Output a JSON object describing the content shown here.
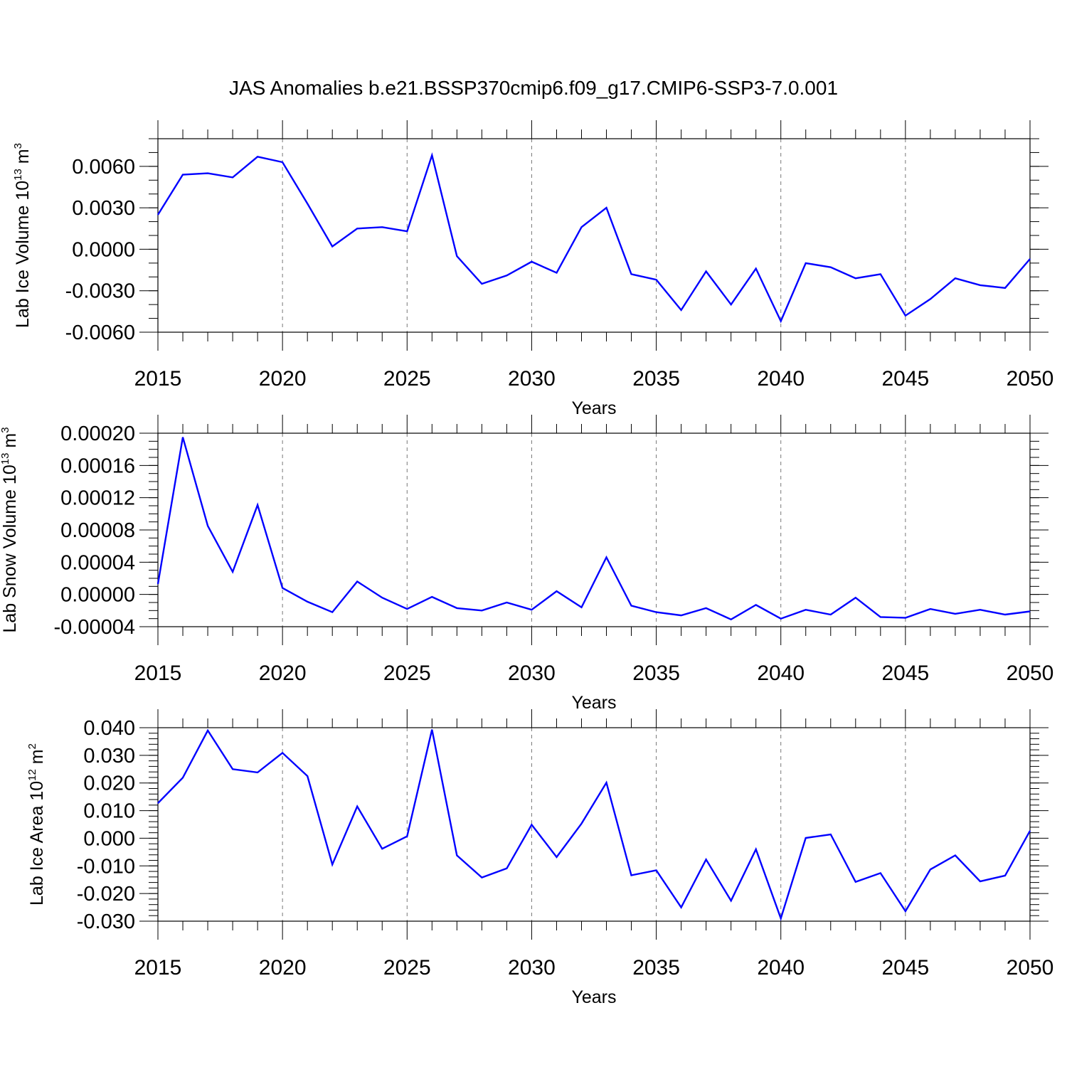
{
  "title": "JAS Anomalies b.e21.BSSP370cmip6.f09_g17.CMIP6-SSP3-7.0.001",
  "colors": {
    "series": "#0000ff",
    "grid": "#777777",
    "axis": "#000000"
  },
  "chart_data": [
    {
      "type": "line",
      "ylabel": {
        "main": "Lab Ice Volume 10",
        "sup": "13",
        "unit": " m",
        "unit_sup": "3"
      },
      "xlabel": "Years",
      "xlim": [
        2015,
        2050
      ],
      "ylim": [
        -0.006,
        0.008
      ],
      "yticks": [
        -0.006,
        -0.003,
        0.0,
        0.003,
        0.006
      ],
      "ytick_labels": [
        "-0.0060",
        "-0.0030",
        "0.0000",
        "0.0030",
        "0.0060"
      ],
      "yminor_step": 0.001,
      "xticks": [
        2015,
        2020,
        2025,
        2030,
        2035,
        2040,
        2045,
        2050
      ],
      "xtick_labels": [
        "2015",
        "2020",
        "2025",
        "2030",
        "2035",
        "2040",
        "2045",
        "2050"
      ],
      "grid": "vertical dashed at major x ticks",
      "x": [
        2015,
        2016,
        2017,
        2018,
        2019,
        2020,
        2021,
        2022,
        2023,
        2024,
        2025,
        2026,
        2027,
        2028,
        2029,
        2030,
        2031,
        2032,
        2033,
        2034,
        2035,
        2036,
        2037,
        2038,
        2039,
        2040,
        2041,
        2042,
        2043,
        2044,
        2045,
        2046,
        2047,
        2048,
        2049,
        2050
      ],
      "values": [
        0.0025,
        0.0054,
        0.0055,
        0.0052,
        0.0067,
        0.0063,
        0.0033,
        0.0002,
        0.0015,
        0.0016,
        0.0013,
        0.0068,
        -0.0005,
        -0.0025,
        -0.0019,
        -0.0009,
        -0.0017,
        0.0016,
        0.003,
        -0.0018,
        -0.0022,
        -0.0044,
        -0.0016,
        -0.004,
        -0.0014,
        -0.0052,
        -0.001,
        -0.0013,
        -0.0021,
        -0.0018,
        -0.0048,
        -0.0036,
        -0.0021,
        -0.0026,
        -0.0028,
        -0.0007
      ]
    },
    {
      "type": "line",
      "ylabel": {
        "main": "Lab Snow Volume 10",
        "sup": "13",
        "unit": " m",
        "unit_sup": "3"
      },
      "xlabel": "Years",
      "xlim": [
        2015,
        2050
      ],
      "ylim": [
        -4e-05,
        0.0002
      ],
      "yticks": [
        -4e-05,
        0.0,
        4e-05,
        8e-05,
        0.00012,
        0.00016,
        0.0002
      ],
      "ytick_labels": [
        "-0.00004",
        "0.00000",
        "0.00004",
        "0.00008",
        "0.00012",
        "0.00016",
        "0.00020"
      ],
      "yminor_step": 1e-05,
      "xticks": [
        2015,
        2020,
        2025,
        2030,
        2035,
        2040,
        2045,
        2050
      ],
      "xtick_labels": [
        "2015",
        "2020",
        "2025",
        "2030",
        "2035",
        "2040",
        "2045",
        "2050"
      ],
      "grid": "vertical dashed at major x ticks",
      "x": [
        2015,
        2016,
        2017,
        2018,
        2019,
        2020,
        2021,
        2022,
        2023,
        2024,
        2025,
        2026,
        2027,
        2028,
        2029,
        2030,
        2031,
        2032,
        2033,
        2034,
        2035,
        2036,
        2037,
        2038,
        2039,
        2040,
        2041,
        2042,
        2043,
        2044,
        2045,
        2046,
        2047,
        2048,
        2049,
        2050
      ],
      "values": [
        1.3e-05,
        0.000195,
        8.5e-05,
        2.8e-05,
        0.000111,
        8e-06,
        -9e-06,
        -2.2e-05,
        1.6e-05,
        -4e-06,
        -1.8e-05,
        -3e-06,
        -1.7e-05,
        -2e-05,
        -1e-05,
        -1.9e-05,
        4e-06,
        -1.6e-05,
        4.6e-05,
        -1.4e-05,
        -2.2e-05,
        -2.6e-05,
        -1.7e-05,
        -3.1e-05,
        -1.3e-05,
        -3e-05,
        -1.9e-05,
        -2.5e-05,
        -4e-06,
        -2.8e-05,
        -2.9e-05,
        -1.8e-05,
        -2.4e-05,
        -1.9e-05,
        -2.5e-05,
        -2.1e-05
      ]
    },
    {
      "type": "line",
      "ylabel": {
        "main": "Lab Ice Area 10",
        "sup": "12",
        "unit": " m",
        "unit_sup": "2"
      },
      "xlabel": "Years",
      "xlim": [
        2015,
        2050
      ],
      "ylim": [
        -0.03,
        0.04
      ],
      "yticks": [
        -0.03,
        -0.02,
        -0.01,
        0.0,
        0.01,
        0.02,
        0.03,
        0.04
      ],
      "ytick_labels": [
        "-0.030",
        "-0.020",
        "-0.010",
        "0.000",
        "0.010",
        "0.020",
        "0.030",
        "0.040"
      ],
      "yminor_step": 0.002,
      "xticks": [
        2015,
        2020,
        2025,
        2030,
        2035,
        2040,
        2045,
        2050
      ],
      "xtick_labels": [
        "2015",
        "2020",
        "2025",
        "2030",
        "2035",
        "2040",
        "2045",
        "2050"
      ],
      "grid": "vertical dashed at major x ticks",
      "x": [
        2015,
        2016,
        2017,
        2018,
        2019,
        2020,
        2021,
        2022,
        2023,
        2024,
        2025,
        2026,
        2027,
        2028,
        2029,
        2030,
        2031,
        2032,
        2033,
        2034,
        2035,
        2036,
        2037,
        2038,
        2039,
        2040,
        2041,
        2042,
        2043,
        2044,
        2045,
        2046,
        2047,
        2048,
        2049,
        2050
      ],
      "values": [
        0.0127,
        0.0219,
        0.039,
        0.025,
        0.0238,
        0.0309,
        0.0225,
        -0.0095,
        0.0115,
        -0.0038,
        0.0007,
        0.0393,
        -0.0062,
        -0.0142,
        -0.0109,
        0.0049,
        -0.0068,
        0.0053,
        0.0201,
        -0.0134,
        -0.0116,
        -0.025,
        -0.0077,
        -0.0226,
        -0.004,
        -0.029,
        0.0001,
        0.0014,
        -0.0158,
        -0.0126,
        -0.0264,
        -0.0113,
        -0.0062,
        -0.0156,
        -0.0135,
        0.0027
      ]
    }
  ]
}
